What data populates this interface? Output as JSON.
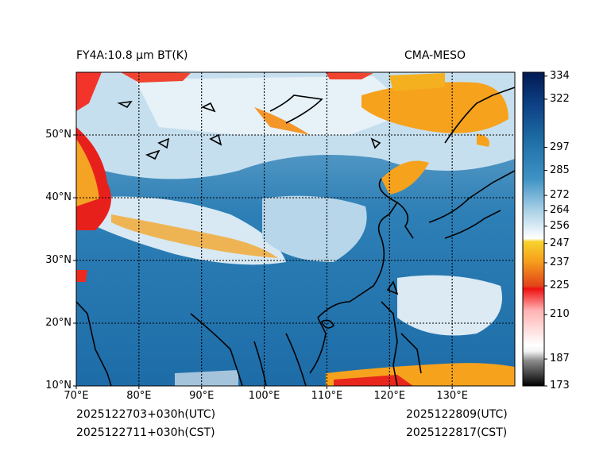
{
  "header": {
    "title_left": "FY4A:10.8 µm BT(K)",
    "title_right": "CMA-MESO"
  },
  "footer": {
    "init_utc": "2025122703+030h(UTC)",
    "init_cst": "2025122711+030h(CST)",
    "valid_utc": "2025122809(UTC)",
    "valid_cst": "2025122817(CST)"
  },
  "axes": {
    "lon_labels": [
      "70°E",
      "80°E",
      "90°E",
      "100°E",
      "110°E",
      "120°E",
      "130°E"
    ],
    "lat_labels": [
      "10°N",
      "20°N",
      "30°N",
      "40°N",
      "50°N"
    ],
    "lon_range": [
      70,
      140
    ],
    "lat_range": [
      10,
      60
    ]
  },
  "colorbar": {
    "label_values": [
      "334",
      "322",
      "297",
      "285",
      "272",
      "264",
      "256",
      "247",
      "237",
      "225",
      "210",
      "187",
      "173"
    ],
    "range": [
      173,
      336
    ],
    "colors": {
      "cold_white": "#ffffff",
      "orange": "#f6a21d",
      "red": "#ee1111",
      "blue_mid": "#1f78b4",
      "navy": "#03256b"
    }
  }
}
